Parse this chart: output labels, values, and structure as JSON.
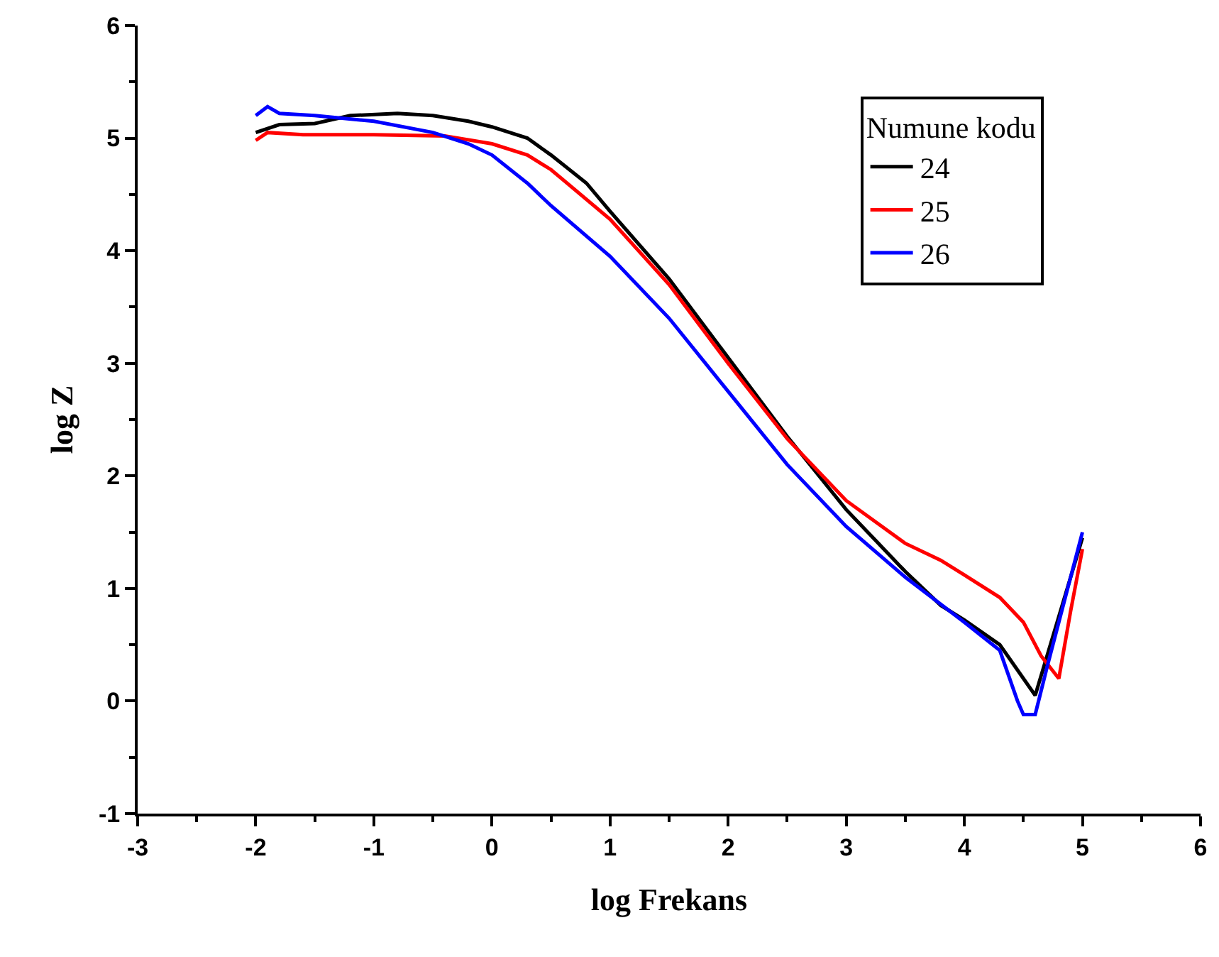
{
  "chart_data": {
    "type": "line",
    "xlabel": "log Frekans",
    "ylabel": "log Z",
    "legend_title": "Numune kodu",
    "legend": "top right",
    "xlim": [
      -3,
      6
    ],
    "xticks": [
      -3,
      -2,
      -1,
      0,
      1,
      2,
      3,
      4,
      5,
      6
    ],
    "ylim": [
      -1,
      6
    ],
    "yticks": [
      -1,
      0,
      1,
      2,
      3,
      4,
      5,
      6
    ],
    "marker": "none",
    "line_style": "solid",
    "series": [
      {
        "name": "24",
        "color": "#000000",
        "x": [
          -2,
          -1.8,
          -1.5,
          -1.2,
          -0.8,
          -0.5,
          -0.2,
          0,
          0.3,
          0.5,
          0.8,
          1,
          1.5,
          2,
          2.5,
          3,
          3.5,
          3.8,
          4,
          4.3,
          4.6,
          4.8,
          5
        ],
        "values": [
          5.05,
          5.12,
          5.13,
          5.2,
          5.22,
          5.2,
          5.15,
          5.1,
          5.0,
          4.85,
          4.6,
          4.35,
          3.75,
          3.05,
          2.35,
          1.7,
          1.15,
          0.85,
          0.72,
          0.5,
          0.05,
          0.75,
          1.45
        ]
      },
      {
        "name": "25",
        "color": "#ff0000",
        "x": [
          -2,
          -1.9,
          -1.6,
          -1,
          -0.4,
          0,
          0.3,
          0.5,
          1,
          1.5,
          2,
          2.5,
          3,
          3.5,
          3.8,
          4,
          4.3,
          4.5,
          4.65,
          4.8,
          4.9,
          5
        ],
        "values": [
          4.98,
          5.05,
          5.03,
          5.03,
          5.02,
          4.95,
          4.85,
          4.72,
          4.28,
          3.7,
          3.0,
          2.33,
          1.78,
          1.4,
          1.25,
          1.12,
          0.92,
          0.7,
          0.4,
          0.2,
          0.8,
          1.35
        ]
      },
      {
        "name": "26",
        "color": "#0000ff",
        "x": [
          -2,
          -1.9,
          -1.8,
          -1.5,
          -1,
          -0.5,
          -0.2,
          0,
          0.3,
          0.5,
          1,
          1.5,
          2,
          2.5,
          3,
          3.5,
          4,
          4.3,
          4.45,
          4.5,
          4.6,
          4.7,
          4.85,
          5
        ],
        "values": [
          5.2,
          5.28,
          5.22,
          5.2,
          5.15,
          5.05,
          4.95,
          4.85,
          4.6,
          4.4,
          3.95,
          3.4,
          2.75,
          2.1,
          1.55,
          1.1,
          0.7,
          0.45,
          0.0,
          -0.12,
          -0.12,
          0.3,
          0.9,
          1.5
        ]
      }
    ]
  }
}
